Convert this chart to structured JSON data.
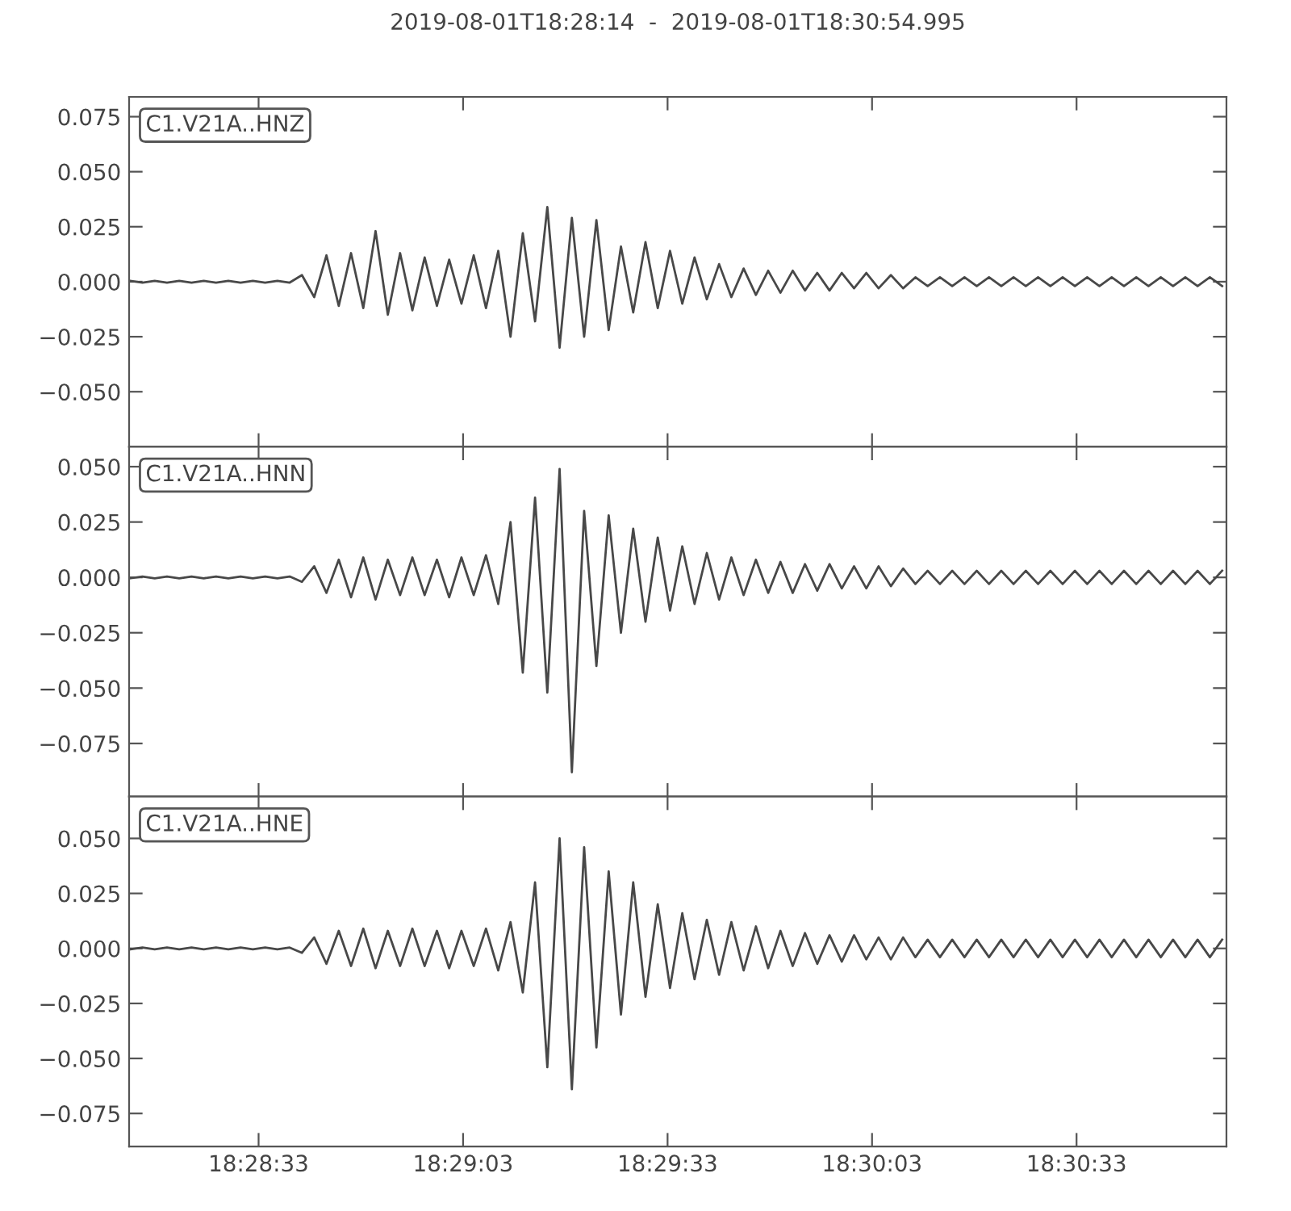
{
  "chart_data": [
    {
      "type": "line",
      "title": "2019-08-01T18:28:14  -  2019-08-01T18:30:54.995",
      "annotations": [
        "C1.V21A..HNZ"
      ],
      "tick_labels": "y",
      "grid": false,
      "marker": "none",
      "line_style": "solid",
      "xlim": [
        18.470556,
        18.515276
      ],
      "xticks": [
        {
          "value": 18.475833,
          "label": null
        },
        {
          "value": 18.484167,
          "label": null
        },
        {
          "value": 18.4925,
          "label": null
        },
        {
          "value": 18.500833,
          "label": null
        },
        {
          "value": 18.509167,
          "label": null
        }
      ],
      "ylim": [
        -0.075,
        0.084
      ],
      "yticks": [
        {
          "value": -0.05,
          "label": "−0.050"
        },
        {
          "value": -0.025,
          "label": "−0.025"
        },
        {
          "value": 0,
          "label": "0.000"
        },
        {
          "value": 0.025,
          "label": "0.025"
        },
        {
          "value": 0.05,
          "label": "0.050"
        },
        {
          "value": 0.075,
          "label": "0.075"
        }
      ],
      "x": [
        18.4706,
        18.4711,
        18.4716,
        18.4721,
        18.4726,
        18.4731,
        18.4736,
        18.4741,
        18.4746,
        18.4751,
        18.4756,
        18.4761,
        18.4766,
        18.4771,
        18.4776,
        18.4781,
        18.4786,
        18.4791,
        18.4796,
        18.4801,
        18.4806,
        18.4811,
        18.4816,
        18.4821,
        18.4826,
        18.4831,
        18.4836,
        18.4841,
        18.4846,
        18.4851,
        18.4856,
        18.4861,
        18.4866,
        18.4871,
        18.4876,
        18.4881,
        18.4886,
        18.4891,
        18.4896,
        18.4901,
        18.4906,
        18.4911,
        18.4916,
        18.4921,
        18.4926,
        18.4931,
        18.4936,
        18.4941,
        18.4946,
        18.4951,
        18.4956,
        18.4961,
        18.4966,
        18.4971,
        18.4976,
        18.4981,
        18.4986,
        18.4991,
        18.4996,
        18.5001,
        18.5006,
        18.5011,
        18.5016,
        18.5021,
        18.5026,
        18.5031,
        18.5036,
        18.5041,
        18.5046,
        18.5051,
        18.5056,
        18.5061,
        18.5066,
        18.5071,
        18.5076,
        18.5081,
        18.5086,
        18.5091,
        18.5096,
        18.5101,
        18.5106,
        18.5111,
        18.5116,
        18.5121,
        18.5126,
        18.5131,
        18.5136,
        18.5141,
        18.5146,
        18.5151
      ],
      "series": [
        {
          "color": "#484848",
          "values": [
            0.0004,
            -0.0004,
            0.0004,
            -0.0004,
            0.0004,
            -0.0004,
            0.0004,
            -0.0004,
            0.0004,
            -0.0004,
            0.0004,
            -0.0004,
            0.0004,
            -0.0004,
            0.003,
            -0.007,
            0.012,
            -0.011,
            0.013,
            -0.012,
            0.023,
            -0.015,
            0.013,
            -0.013,
            0.011,
            -0.011,
            0.01,
            -0.01,
            0.012,
            -0.012,
            0.014,
            -0.025,
            0.022,
            -0.018,
            0.034,
            -0.03,
            0.029,
            -0.025,
            0.028,
            -0.022,
            0.016,
            -0.014,
            0.018,
            -0.012,
            0.014,
            -0.01,
            0.011,
            -0.008,
            0.008,
            -0.007,
            0.006,
            -0.006,
            0.005,
            -0.005,
            0.005,
            -0.004,
            0.004,
            -0.004,
            0.004,
            -0.003,
            0.004,
            -0.003,
            0.003,
            -0.003,
            0.002,
            -0.002,
            0.002,
            -0.002,
            0.002,
            -0.002,
            0.002,
            -0.002,
            0.002,
            -0.002,
            0.002,
            -0.002,
            0.002,
            -0.002,
            0.002,
            -0.002,
            0.002,
            -0.002,
            0.002,
            -0.002,
            0.002,
            -0.002,
            0.002,
            -0.002,
            0.002,
            -0.002
          ]
        }
      ]
    },
    {
      "type": "line",
      "annotations": [
        "C1.V21A..HNN"
      ],
      "tick_labels": "y",
      "grid": false,
      "marker": "none",
      "line_style": "solid",
      "xlim": [
        18.470556,
        18.515276
      ],
      "xticks": [
        {
          "value": 18.475833,
          "label": null
        },
        {
          "value": 18.484167,
          "label": null
        },
        {
          "value": 18.4925,
          "label": null
        },
        {
          "value": 18.500833,
          "label": null
        },
        {
          "value": 18.509167,
          "label": null
        }
      ],
      "ylim": [
        -0.099,
        0.059
      ],
      "yticks": [
        {
          "value": -0.075,
          "label": "−0.075"
        },
        {
          "value": -0.05,
          "label": "−0.050"
        },
        {
          "value": -0.025,
          "label": "−0.025"
        },
        {
          "value": 0,
          "label": "0.000"
        },
        {
          "value": 0.025,
          "label": "0.025"
        },
        {
          "value": 0.05,
          "label": "0.050"
        }
      ],
      "x": [
        18.4706,
        18.4711,
        18.4716,
        18.4721,
        18.4726,
        18.4731,
        18.4736,
        18.4741,
        18.4746,
        18.4751,
        18.4756,
        18.4761,
        18.4766,
        18.4771,
        18.4776,
        18.4781,
        18.4786,
        18.4791,
        18.4796,
        18.4801,
        18.4806,
        18.4811,
        18.4816,
        18.4821,
        18.4826,
        18.4831,
        18.4836,
        18.4841,
        18.4846,
        18.4851,
        18.4856,
        18.4861,
        18.4866,
        18.4871,
        18.4876,
        18.4881,
        18.4886,
        18.4891,
        18.4896,
        18.4901,
        18.4906,
        18.4911,
        18.4916,
        18.4921,
        18.4926,
        18.4931,
        18.4936,
        18.4941,
        18.4946,
        18.4951,
        18.4956,
        18.4961,
        18.4966,
        18.4971,
        18.4976,
        18.4981,
        18.4986,
        18.4991,
        18.4996,
        18.5001,
        18.5006,
        18.5011,
        18.5016,
        18.5021,
        18.5026,
        18.5031,
        18.5036,
        18.5041,
        18.5046,
        18.5051,
        18.5056,
        18.5061,
        18.5066,
        18.5071,
        18.5076,
        18.5081,
        18.5086,
        18.5091,
        18.5096,
        18.5101,
        18.5106,
        18.5111,
        18.5116,
        18.5121,
        18.5126,
        18.5131,
        18.5136,
        18.5141,
        18.5146,
        18.5151
      ],
      "series": [
        {
          "color": "#484848",
          "values": [
            -0.0004,
            0.0004,
            -0.0004,
            0.0004,
            -0.0004,
            0.0004,
            -0.0004,
            0.0004,
            -0.0004,
            0.0004,
            -0.0004,
            0.0004,
            -0.0004,
            0.0004,
            -0.002,
            0.005,
            -0.007,
            0.008,
            -0.009,
            0.009,
            -0.01,
            0.008,
            -0.008,
            0.009,
            -0.008,
            0.008,
            -0.009,
            0.009,
            -0.008,
            0.01,
            -0.012,
            0.025,
            -0.043,
            0.036,
            -0.052,
            0.049,
            -0.088,
            0.03,
            -0.04,
            0.028,
            -0.025,
            0.022,
            -0.02,
            0.018,
            -0.015,
            0.014,
            -0.012,
            0.011,
            -0.01,
            0.009,
            -0.008,
            0.008,
            -0.007,
            0.007,
            -0.007,
            0.006,
            -0.006,
            0.006,
            -0.005,
            0.005,
            -0.005,
            0.005,
            -0.004,
            0.004,
            -0.003,
            0.003,
            -0.003,
            0.003,
            -0.003,
            0.003,
            -0.003,
            0.003,
            -0.003,
            0.003,
            -0.003,
            0.003,
            -0.003,
            0.003,
            -0.003,
            0.003,
            -0.003,
            0.003,
            -0.003,
            0.003,
            -0.003,
            0.003,
            -0.003,
            0.003,
            -0.003,
            0.003
          ]
        }
      ]
    },
    {
      "type": "line",
      "annotations": [
        "C1.V21A..HNE"
      ],
      "grid": false,
      "marker": "none",
      "line_style": "solid",
      "xlim": [
        18.470556,
        18.515276
      ],
      "xticks": [
        {
          "value": 18.475833,
          "label": "18:28:33"
        },
        {
          "value": 18.484167,
          "label": "18:29:03"
        },
        {
          "value": 18.4925,
          "label": "18:29:33"
        },
        {
          "value": 18.500833,
          "label": "18:30:03"
        },
        {
          "value": 18.509167,
          "label": "18:30:33"
        }
      ],
      "ylim": [
        -0.09,
        0.069
      ],
      "yticks": [
        {
          "value": -0.075,
          "label": "−0.075"
        },
        {
          "value": -0.05,
          "label": "−0.050"
        },
        {
          "value": -0.025,
          "label": "−0.025"
        },
        {
          "value": 0,
          "label": "0.000"
        },
        {
          "value": 0.025,
          "label": "0.025"
        },
        {
          "value": 0.05,
          "label": "0.050"
        }
      ],
      "x": [
        18.4706,
        18.4711,
        18.4716,
        18.4721,
        18.4726,
        18.4731,
        18.4736,
        18.4741,
        18.4746,
        18.4751,
        18.4756,
        18.4761,
        18.4766,
        18.4771,
        18.4776,
        18.4781,
        18.4786,
        18.4791,
        18.4796,
        18.4801,
        18.4806,
        18.4811,
        18.4816,
        18.4821,
        18.4826,
        18.4831,
        18.4836,
        18.4841,
        18.4846,
        18.4851,
        18.4856,
        18.4861,
        18.4866,
        18.4871,
        18.4876,
        18.4881,
        18.4886,
        18.4891,
        18.4896,
        18.4901,
        18.4906,
        18.4911,
        18.4916,
        18.4921,
        18.4926,
        18.4931,
        18.4936,
        18.4941,
        18.4946,
        18.4951,
        18.4956,
        18.4961,
        18.4966,
        18.4971,
        18.4976,
        18.4981,
        18.4986,
        18.4991,
        18.4996,
        18.5001,
        18.5006,
        18.5011,
        18.5016,
        18.5021,
        18.5026,
        18.5031,
        18.5036,
        18.5041,
        18.5046,
        18.5051,
        18.5056,
        18.5061,
        18.5066,
        18.5071,
        18.5076,
        18.5081,
        18.5086,
        18.5091,
        18.5096,
        18.5101,
        18.5106,
        18.5111,
        18.5116,
        18.5121,
        18.5126,
        18.5131,
        18.5136,
        18.5141,
        18.5146,
        18.5151
      ],
      "series": [
        {
          "color": "#484848",
          "values": [
            -0.0004,
            0.0004,
            -0.0004,
            0.0004,
            -0.0004,
            0.0004,
            -0.0004,
            0.0004,
            -0.0004,
            0.0004,
            -0.0004,
            0.0004,
            -0.0004,
            0.0004,
            -0.002,
            0.005,
            -0.007,
            0.008,
            -0.008,
            0.009,
            -0.009,
            0.008,
            -0.008,
            0.009,
            -0.008,
            0.008,
            -0.009,
            0.008,
            -0.008,
            0.009,
            -0.01,
            0.012,
            -0.02,
            0.03,
            -0.054,
            0.05,
            -0.064,
            0.046,
            -0.045,
            0.035,
            -0.03,
            0.03,
            -0.022,
            0.02,
            -0.018,
            0.016,
            -0.014,
            0.013,
            -0.012,
            0.012,
            -0.01,
            0.01,
            -0.009,
            0.008,
            -0.008,
            0.007,
            -0.007,
            0.006,
            -0.006,
            0.006,
            -0.005,
            0.005,
            -0.005,
            0.005,
            -0.004,
            0.004,
            -0.004,
            0.004,
            -0.004,
            0.004,
            -0.004,
            0.004,
            -0.004,
            0.004,
            -0.004,
            0.004,
            -0.004,
            0.004,
            -0.004,
            0.004,
            -0.004,
            0.004,
            -0.004,
            0.004,
            -0.004,
            0.004,
            -0.004,
            0.004,
            -0.004,
            0.004
          ]
        }
      ]
    }
  ]
}
